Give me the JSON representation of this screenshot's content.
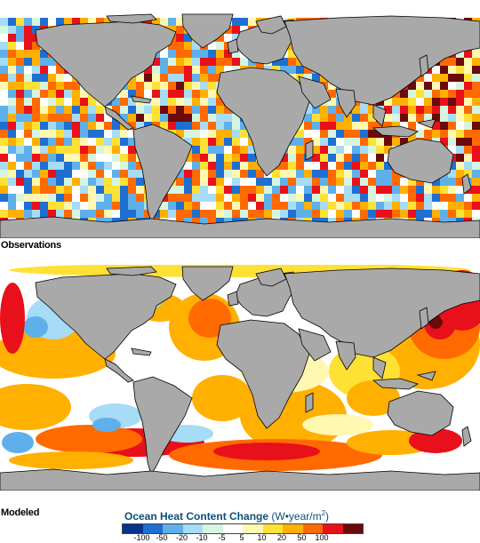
{
  "panels": {
    "observations": {
      "label": "Observations"
    },
    "modeled": {
      "label": "Modeled"
    }
  },
  "legend": {
    "title": "Ocean Heat Content Change",
    "units_prefix": "(W•year/m",
    "units_exp": "2",
    "units_suffix": ")",
    "colors": [
      "#08338c",
      "#1f6fd1",
      "#5fb0ea",
      "#a6dcf5",
      "#d6f5e0",
      "#ffffff",
      "#fff8b0",
      "#ffe135",
      "#ffb000",
      "#ff6a00",
      "#e8101a",
      "#6a0a0a"
    ],
    "ticks": [
      "-100",
      "-50",
      "-20",
      "-10",
      "-5",
      "5",
      "10",
      "20",
      "50",
      "100"
    ]
  },
  "colors": {
    "land": "#a9a9a9",
    "coastline": "#000000",
    "sea_ice": "#ffffff"
  }
}
